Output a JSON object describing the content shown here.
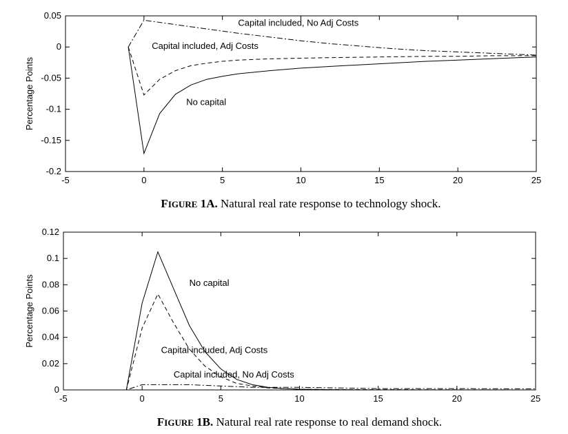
{
  "chart_data": [
    {
      "type": "line",
      "id": "fig1a",
      "caption_lead": "Figure",
      "caption_num": " 1A.",
      "caption_text": " Natural real rate response to technology shock.",
      "ylabel": "Percentage Points",
      "xlabel": "",
      "xlim": [
        -5,
        25
      ],
      "ylim": [
        -0.2,
        0.05
      ],
      "xticks": [
        -5,
        0,
        5,
        10,
        15,
        20,
        25
      ],
      "yticks": [
        -0.2,
        -0.15,
        -0.1,
        -0.05,
        0,
        0.05
      ],
      "ytick_labels": [
        "-0.2",
        "-0.15",
        "-0.1",
        "-0.05",
        "0",
        "0.05"
      ],
      "grid": false,
      "series": [
        {
          "name": "No capital",
          "style": "solid",
          "x": [
            -1,
            0,
            1,
            2,
            3,
            4,
            5,
            6,
            8,
            10,
            12,
            15,
            18,
            20,
            22,
            25
          ],
          "y": [
            0,
            -0.171,
            -0.107,
            -0.076,
            -0.061,
            -0.052,
            -0.047,
            -0.043,
            -0.038,
            -0.034,
            -0.031,
            -0.027,
            -0.023,
            -0.021,
            -0.019,
            -0.016
          ]
        },
        {
          "name": "Capital included, Adj Costs",
          "style": "dashed",
          "x": [
            -1,
            0,
            1,
            2,
            3,
            4,
            5,
            6,
            8,
            10,
            12,
            15,
            18,
            20,
            22,
            25
          ],
          "y": [
            0,
            -0.077,
            -0.052,
            -0.038,
            -0.03,
            -0.026,
            -0.023,
            -0.021,
            -0.019,
            -0.018,
            -0.017,
            -0.016,
            -0.015,
            -0.015,
            -0.014,
            -0.014
          ]
        },
        {
          "name": "Capital included, No Adj Costs",
          "style": "dashdot",
          "x": [
            -1,
            0,
            2,
            4,
            6,
            8,
            10,
            12,
            14,
            16,
            18,
            20,
            22,
            25
          ],
          "y": [
            0,
            0.043,
            0.036,
            0.029,
            0.022,
            0.016,
            0.01,
            0.005,
            0.001,
            -0.003,
            -0.006,
            -0.008,
            -0.01,
            -0.013
          ]
        }
      ],
      "annotations": [
        {
          "text": "Capital included, No Adj Costs",
          "x": 6,
          "y": 0.034
        },
        {
          "text": "Capital included, Adj Costs",
          "x": 0.5,
          "y": -0.003
        },
        {
          "text": "No capital",
          "x": 2.7,
          "y": -0.093
        }
      ]
    },
    {
      "type": "line",
      "id": "fig1b",
      "caption_lead": "Figure",
      "caption_num": " 1B.",
      "caption_text": " Natural real rate response to real demand shock.",
      "ylabel": "Percentage Points",
      "xlabel": "",
      "xlim": [
        -5,
        25
      ],
      "ylim": [
        0,
        0.12
      ],
      "xticks": [
        -5,
        0,
        5,
        10,
        15,
        20,
        25
      ],
      "yticks": [
        0,
        0.02,
        0.04,
        0.06,
        0.08,
        0.1,
        0.12
      ],
      "ytick_labels": [
        "0",
        "0.02",
        "0.04",
        "0.06",
        "0.08",
        "0.1",
        "0.12"
      ],
      "grid": false,
      "series": [
        {
          "name": "No capital",
          "style": "solid",
          "x": [
            -5,
            -1,
            0,
            1,
            2,
            3,
            4,
            5,
            6,
            7,
            8,
            9,
            10,
            12,
            15,
            20,
            25
          ],
          "y": [
            0,
            0,
            0.066,
            0.105,
            0.077,
            0.049,
            0.029,
            0.016,
            0.008,
            0.004,
            0.002,
            0.001,
            0.0005,
            0.0002,
            0,
            0,
            0
          ]
        },
        {
          "name": "Capital included, Adj Costs",
          "style": "dashed",
          "x": [
            -5,
            -1,
            0,
            1,
            2,
            3,
            4,
            5,
            6,
            7,
            8,
            9,
            10,
            12,
            15,
            20,
            25
          ],
          "y": [
            0,
            0,
            0.047,
            0.073,
            0.051,
            0.031,
            0.018,
            0.01,
            0.005,
            0.003,
            0.0015,
            0.001,
            0.0005,
            0.0003,
            0.0002,
            0.0001,
            0
          ]
        },
        {
          "name": "Capital included, No Adj Costs",
          "style": "dashdot",
          "x": [
            -5,
            -1,
            0,
            1,
            3,
            5,
            7,
            10,
            15,
            20,
            25
          ],
          "y": [
            0,
            0,
            0.004,
            0.004,
            0.004,
            0.003,
            0.002,
            0.002,
            0.001,
            0.001,
            0.0008
          ]
        }
      ],
      "annotations": [
        {
          "text": "No capital",
          "x": 3,
          "y": 0.079
        },
        {
          "text": "Capital included, Adj Costs",
          "x": 1.2,
          "y": 0.028
        },
        {
          "text": "Capital included, No Adj Costs",
          "x": 2,
          "y": 0.0095
        }
      ]
    }
  ]
}
